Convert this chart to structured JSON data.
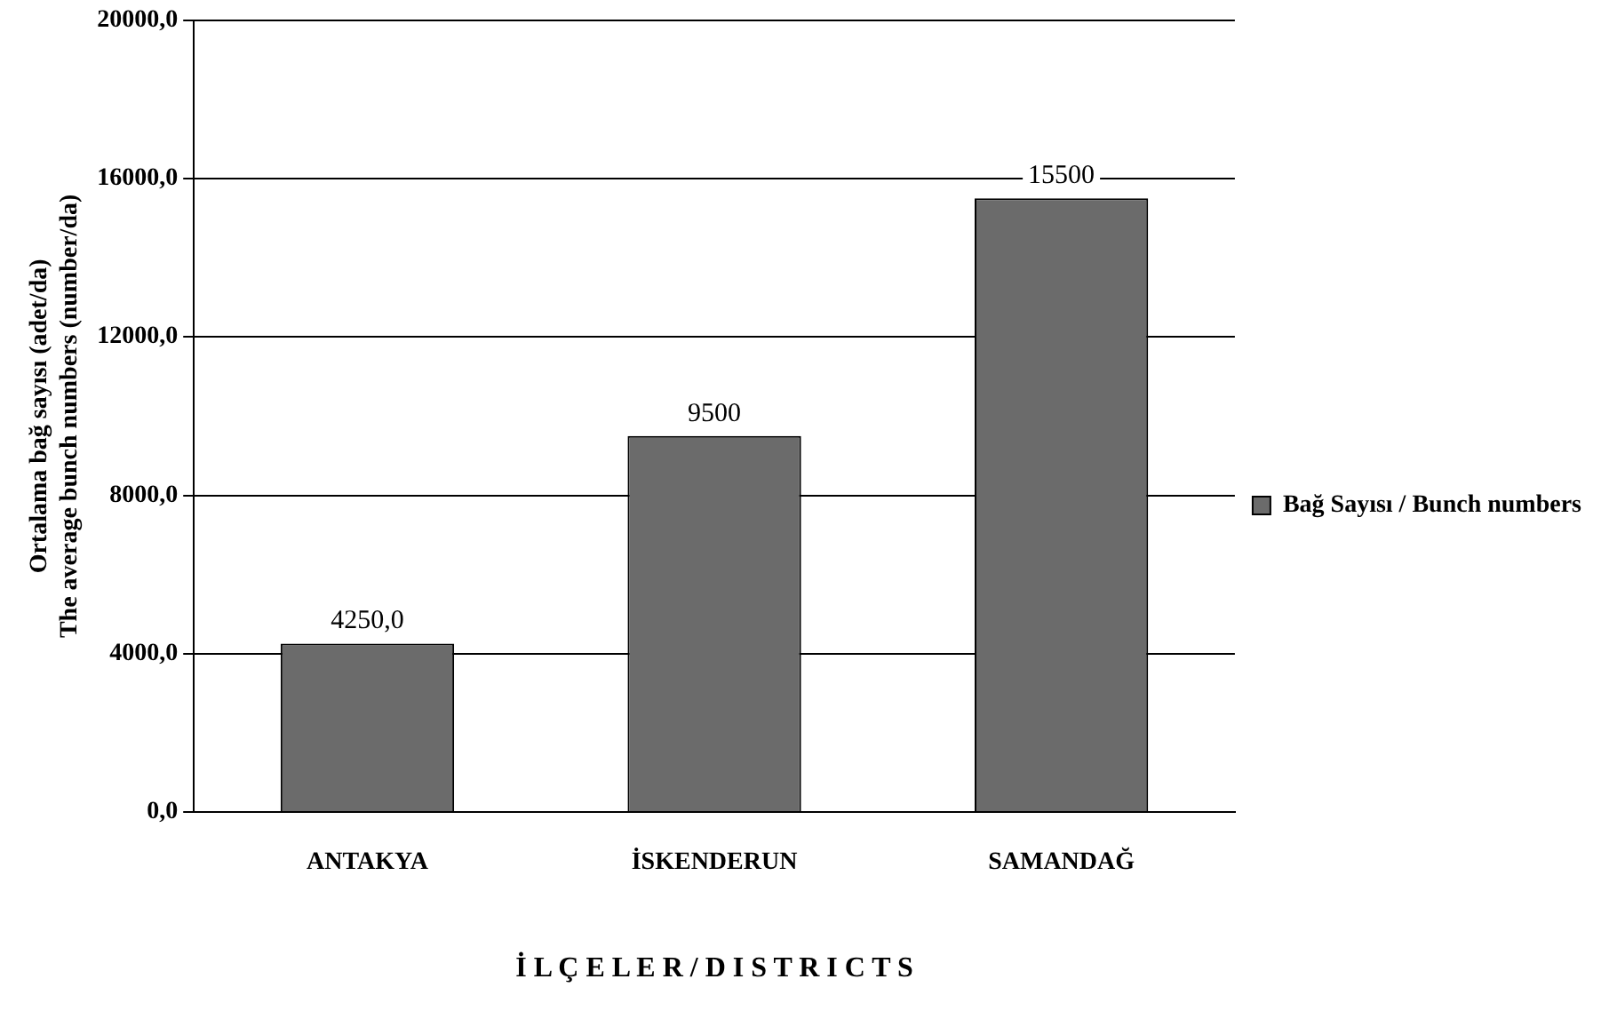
{
  "chart_data": {
    "type": "bar",
    "xlabel": "İ L Ç E L E R / D I S T R I C T S",
    "ylabel": "Ortalama bağ sayısı (adet/da)\nThe average bunch numbers (number/da)",
    "categories": [
      "ANTAKYA",
      "İSKENDERUN",
      "SAMANDAĞ"
    ],
    "series": [
      {
        "name": "Bağ Sayısı / Bunch numbers",
        "color": "#6b6b6b",
        "values": [
          4250,
          9500,
          15500
        ],
        "value_labels": [
          "4250,0",
          "9500",
          "15500"
        ]
      }
    ],
    "ylim": [
      0,
      20000
    ],
    "yticks": [
      {
        "value": 0,
        "label": "0,0"
      },
      {
        "value": 4000,
        "label": "4000,0"
      },
      {
        "value": 8000,
        "label": "8000,0"
      },
      {
        "value": 12000,
        "label": "12000,0"
      },
      {
        "value": 16000,
        "label": "16000,0"
      },
      {
        "value": 20000,
        "label": "20000,0"
      }
    ],
    "grid": "y",
    "legend": "right"
  }
}
